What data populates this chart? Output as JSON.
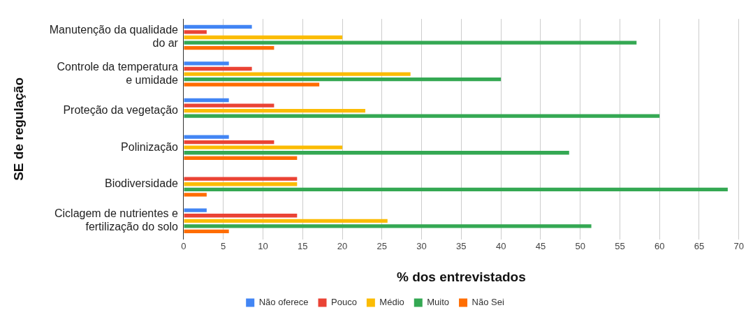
{
  "chart_data": {
    "type": "bar",
    "orientation": "horizontal",
    "xlabel": "% dos entrevistados",
    "ylabel": "SE de regulação",
    "categories": [
      "Manutenção da qualidade do ar",
      "Controle da temperatura e umidade",
      "Proteção da vegetação",
      "Polinização",
      "Biodiversidade",
      "Ciclagem de nutrientes e fertilização do solo"
    ],
    "series": [
      {
        "name": "Não oferece",
        "color": "#4285f4",
        "values": [
          8.6,
          5.7,
          5.7,
          5.7,
          null,
          2.9
        ]
      },
      {
        "name": "Pouco",
        "color": "#ea4335",
        "values": [
          2.9,
          8.6,
          11.4,
          11.4,
          14.3,
          14.3
        ]
      },
      {
        "name": "Médio",
        "color": "#fbbc04",
        "values": [
          20,
          28.6,
          22.9,
          20,
          14.3,
          25.7
        ]
      },
      {
        "name": "Muito",
        "color": "#34a853",
        "values": [
          57.1,
          40,
          60,
          48.6,
          68.6,
          51.4
        ]
      },
      {
        "name": "Não Sei",
        "color": "#ff6d01",
        "values": [
          11.4,
          17.1,
          null,
          14.3,
          2.9,
          5.7
        ]
      }
    ],
    "xlim": [
      0,
      70
    ],
    "xticks": [
      0,
      5,
      10,
      15,
      20,
      25,
      30,
      35,
      40,
      45,
      50,
      55,
      60,
      65,
      70
    ],
    "grid": "x",
    "legend": "bottom"
  }
}
